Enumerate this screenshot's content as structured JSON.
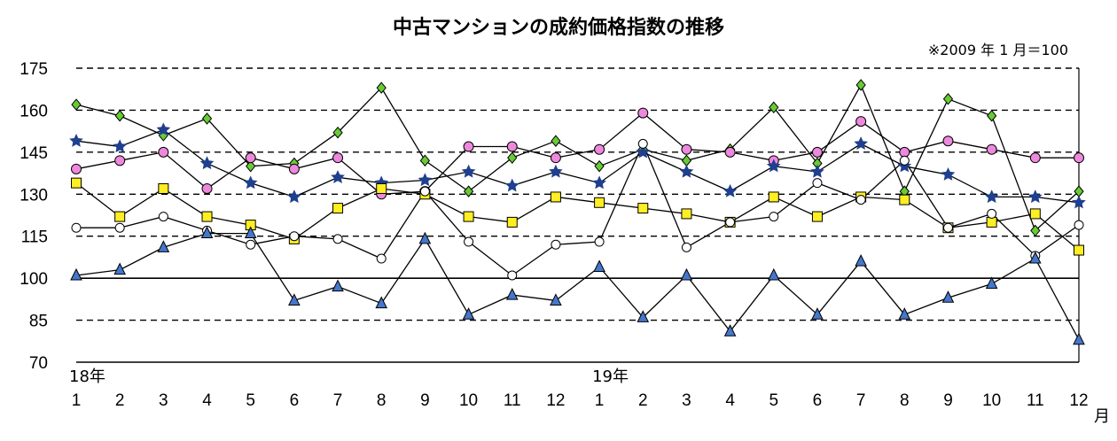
{
  "chart_data": {
    "type": "line",
    "title": "中古マンションの成約価格指数の推移",
    "note": "※2009 年 1 月＝100",
    "ylim": [
      70,
      175
    ],
    "yticks": [
      70,
      85,
      100,
      115,
      130,
      145,
      160,
      175
    ],
    "categories": [
      "1",
      "2",
      "3",
      "4",
      "5",
      "6",
      "7",
      "8",
      "9",
      "10",
      "11",
      "12",
      "1",
      "2",
      "3",
      "4",
      "5",
      "6",
      "7",
      "8",
      "9",
      "10",
      "11",
      "12"
    ],
    "year_labels": [
      {
        "label": "18年",
        "index": 0
      },
      {
        "label": "19年",
        "index": 12
      }
    ],
    "x_unit": "月",
    "grid": "dashed horizontal",
    "series": [
      {
        "marker": "diamond",
        "color": "#66cc33",
        "values": [
          162,
          158,
          151,
          157,
          140,
          141,
          152,
          168,
          142,
          131,
          143,
          149,
          140,
          146,
          142,
          146,
          161,
          141,
          169,
          131,
          164,
          158,
          117,
          131
        ]
      },
      {
        "marker": "circle",
        "color": "#ee88dd",
        "values": [
          139,
          142,
          145,
          132,
          143,
          139,
          143,
          130,
          131,
          147,
          147,
          143,
          146,
          159,
          146,
          145,
          142,
          145,
          156,
          145,
          149,
          146,
          143,
          143
        ]
      },
      {
        "marker": "star",
        "color": "#1f3f8f",
        "values": [
          149,
          147,
          153,
          141,
          134,
          129,
          136,
          134,
          135,
          138,
          133,
          138,
          134,
          145,
          138,
          131,
          140,
          138,
          148,
          140,
          137,
          129,
          129,
          127
        ]
      },
      {
        "marker": "square",
        "color": "#ffee22",
        "values": [
          134,
          122,
          132,
          122,
          119,
          114,
          125,
          132,
          130,
          122,
          120,
          129,
          127,
          125,
          123,
          120,
          129,
          122,
          129,
          128,
          118,
          120,
          123,
          110
        ]
      },
      {
        "marker": "open-circle",
        "color": "#ffffff",
        "values": [
          118,
          118,
          122,
          117,
          112,
          115,
          114,
          107,
          131,
          113,
          101,
          112,
          113,
          148,
          111,
          120,
          122,
          134,
          128,
          142,
          118,
          123,
          108,
          119
        ]
      },
      {
        "marker": "triangle",
        "color": "#4477cc",
        "values": [
          101,
          103,
          111,
          116,
          116,
          92,
          97,
          91,
          114,
          87,
          94,
          92,
          104,
          86,
          101,
          81,
          101,
          87,
          106,
          87,
          93,
          98,
          107,
          78
        ]
      }
    ]
  }
}
